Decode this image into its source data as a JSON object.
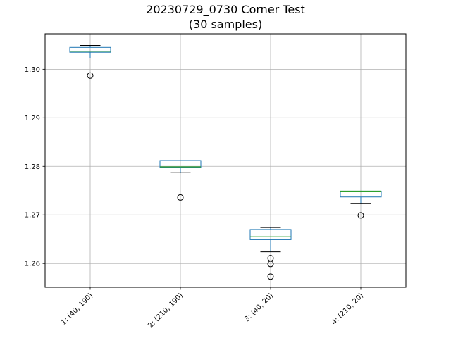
{
  "chart_data": {
    "type": "box",
    "title_lines": [
      "20230729_0730 Corner Test",
      "(30 samples)"
    ],
    "xlabel": "",
    "ylabel": "",
    "ylim": [
      1.2551,
      1.3073
    ],
    "yticks": [
      1.26,
      1.27,
      1.28,
      1.29,
      1.3
    ],
    "ytick_labels": [
      "1.26",
      "1.27",
      "1.28",
      "1.29",
      "1.30"
    ],
    "grid": true,
    "categories": [
      "1: (40, 190)",
      "2: (210, 190)",
      "3: (40, 20)",
      "4: (210, 20)"
    ],
    "boxes": [
      {
        "whisker_low": 1.3023,
        "q1": 1.3035,
        "median": 1.3037,
        "q3": 1.3045,
        "whisker_high": 1.3049,
        "outliers": [
          1.2987
        ]
      },
      {
        "whisker_low": 1.2787,
        "q1": 1.2798,
        "median": 1.2799,
        "q3": 1.2812,
        "whisker_high": 1.2812,
        "outliers": [
          1.2736
        ]
      },
      {
        "whisker_low": 1.2624,
        "q1": 1.2649,
        "median": 1.2655,
        "q3": 1.267,
        "whisker_high": 1.2674,
        "outliers": [
          1.2611,
          1.2599,
          1.2573
        ]
      },
      {
        "whisker_low": 1.2724,
        "q1": 1.2737,
        "median": 1.2749,
        "q3": 1.2749,
        "whisker_high": 1.2749,
        "outliers": [
          1.2699
        ]
      }
    ],
    "colors": {
      "box": "#1f77b4",
      "median": "#2ca02c",
      "whisker": "#000000",
      "grid": "#b0b0b0"
    }
  }
}
